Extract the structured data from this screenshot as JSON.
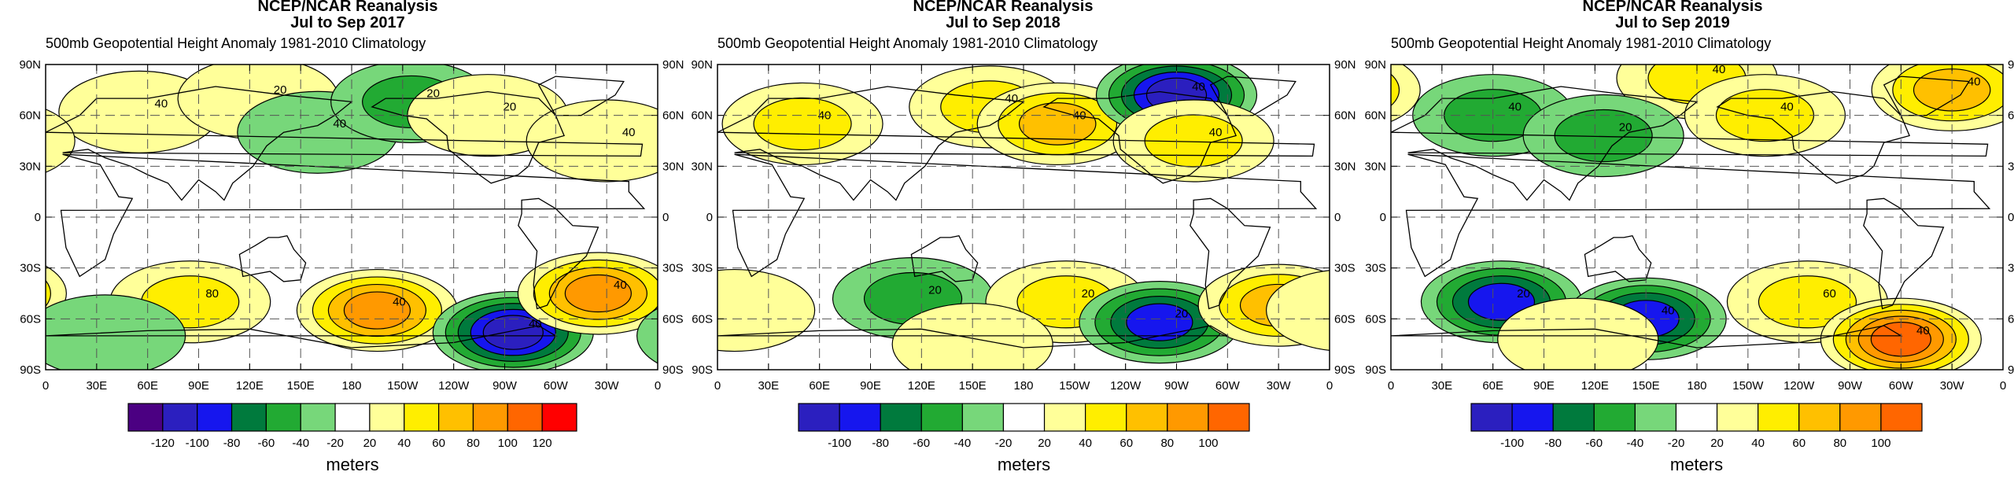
{
  "figure": {
    "panels": [
      {
        "title1": "NCEP/NCAR Reanalysis",
        "title2": "Jul to Sep 2017",
        "subtitle": "500mb Geopotential Height Anomaly  1981-2010 Climatology",
        "colorbar_labels": [
          "-120",
          "-100",
          "-80",
          "-60",
          "-40",
          "-20",
          "20",
          "40",
          "60",
          "80",
          "100",
          "120"
        ],
        "units": "meters",
        "contour_labels": [
          "40",
          "20",
          "40",
          "20",
          "20",
          "40",
          "80",
          "40",
          "40",
          "40"
        ]
      },
      {
        "title1": "NCEP/NCAR Reanalysis",
        "title2": "Jul to Sep 2018",
        "subtitle": "500mb Geopotential Height Anomaly  1981-2010 Climatology",
        "colorbar_labels": [
          "-100",
          "-80",
          "-60",
          "-40",
          "-20",
          "20",
          "40",
          "60",
          "80",
          "100"
        ],
        "units": "meters",
        "contour_labels": [
          "40",
          "40",
          "40",
          "40",
          "40",
          "20",
          "20",
          "20"
        ]
      },
      {
        "title1": "NCEP/NCAR Reanalysis",
        "title2": "Jul to Sep 2019",
        "subtitle": "500mb Geopotential Height Anomaly  1981-2010 Climatology",
        "colorbar_labels": [
          "-100",
          "-80",
          "-60",
          "-40",
          "-20",
          "20",
          "40",
          "60",
          "80",
          "100"
        ],
        "units": "meters",
        "contour_labels": [
          "40",
          "40",
          "40",
          "20",
          "40",
          "20",
          "40",
          "60",
          "40"
        ]
      }
    ],
    "lat_labels": [
      "90N",
      "60N",
      "30N",
      "0",
      "30S",
      "60S",
      "90S"
    ],
    "lon_labels": [
      "0",
      "30E",
      "60E",
      "90E",
      "120E",
      "150E",
      "180",
      "150W",
      "120W",
      "90W",
      "60W",
      "30W",
      "0"
    ],
    "colors": {
      "c_n120": "#4b0082",
      "c_n100": "#2b1fbf",
      "c_n80": "#1616ee",
      "c_n60": "#007a3d",
      "c_n40": "#22aa33",
      "c_n20": "#77d77a",
      "c_0": "#ffffff",
      "c_20": "#ffff99",
      "c_40": "#ffee00",
      "c_60": "#ffc000",
      "c_80": "#ff9900",
      "c_100": "#ff6600",
      "c_120": "#ff0000"
    }
  },
  "chart_data": [
    {
      "type": "heatmap",
      "title": "NCEP/NCAR Reanalysis Jul to Sep 2017",
      "subtitle": "500mb Geopotential Height Anomaly 1981-2010 Climatology",
      "x_axis": [
        "0",
        "30E",
        "60E",
        "90E",
        "120E",
        "150E",
        "180",
        "150W",
        "120W",
        "90W",
        "60W",
        "30W",
        "0"
      ],
      "y_axis": [
        "90N",
        "60N",
        "30N",
        "0",
        "30S",
        "60S",
        "90S"
      ],
      "colorbar": {
        "levels": [
          -120,
          -100,
          -80,
          -60,
          -40,
          -20,
          20,
          40,
          60,
          80,
          100,
          120
        ],
        "units": "meters"
      },
      "anomalies": [
        {
          "lon": 55,
          "lat": 62,
          "value": 35
        },
        {
          "lon": 125,
          "lat": 70,
          "value": 25
        },
        {
          "lon": 160,
          "lat": 50,
          "value": -35
        },
        {
          "lon": 215,
          "lat": 68,
          "value": -40
        },
        {
          "lon": 260,
          "lat": 60,
          "value": 30
        },
        {
          "lon": 330,
          "lat": 45,
          "value": 30
        },
        {
          "lon": 85,
          "lat": -50,
          "value": 55
        },
        {
          "lon": 195,
          "lat": -55,
          "value": 85
        },
        {
          "lon": 275,
          "lat": -68,
          "value": -110
        },
        {
          "lon": 325,
          "lat": -45,
          "value": 80
        },
        {
          "lon": 35,
          "lat": -70,
          "value": -30
        }
      ]
    },
    {
      "type": "heatmap",
      "title": "NCEP/NCAR Reanalysis Jul to Sep 2018",
      "subtitle": "500mb Geopotential Height Anomaly 1981-2010 Climatology",
      "x_axis": [
        "0",
        "30E",
        "60E",
        "90E",
        "120E",
        "150E",
        "180",
        "150W",
        "120W",
        "90W",
        "60W",
        "30W",
        "0"
      ],
      "y_axis": [
        "90N",
        "60N",
        "30N",
        "0",
        "30S",
        "60S",
        "90S"
      ],
      "colorbar": {
        "levels": [
          -100,
          -80,
          -60,
          -40,
          -20,
          20,
          40,
          60,
          80,
          100
        ],
        "units": "meters"
      },
      "anomalies": [
        {
          "lon": 50,
          "lat": 55,
          "value": 40
        },
        {
          "lon": 160,
          "lat": 65,
          "value": 45
        },
        {
          "lon": 200,
          "lat": 55,
          "value": 70
        },
        {
          "lon": 270,
          "lat": 72,
          "value": -100
        },
        {
          "lon": 280,
          "lat": 45,
          "value": 50
        },
        {
          "lon": 115,
          "lat": -48,
          "value": -50
        },
        {
          "lon": 205,
          "lat": -50,
          "value": 50
        },
        {
          "lon": 260,
          "lat": -62,
          "value": -95
        },
        {
          "lon": 330,
          "lat": -52,
          "value": 70
        },
        {
          "lon": 150,
          "lat": -75,
          "value": 30
        },
        {
          "lon": 10,
          "lat": -55,
          "value": 30
        }
      ]
    },
    {
      "type": "heatmap",
      "title": "NCEP/NCAR Reanalysis Jul to Sep 2019",
      "subtitle": "500mb Geopotential Height Anomaly 1981-2010 Climatology",
      "x_axis": [
        "0",
        "30E",
        "60E",
        "90E",
        "120E",
        "150E",
        "180",
        "150W",
        "120W",
        "90W",
        "60W",
        "30W",
        "0"
      ],
      "y_axis": [
        "90N",
        "60N",
        "30N",
        "0",
        "30S",
        "60S",
        "90S"
      ],
      "colorbar": {
        "levels": [
          -100,
          -80,
          -60,
          -40,
          -20,
          20,
          40,
          60,
          80,
          100
        ],
        "units": "meters"
      },
      "anomalies": [
        {
          "lon": 180,
          "lat": 82,
          "value": 40
        },
        {
          "lon": 330,
          "lat": 75,
          "value": 70
        },
        {
          "lon": 60,
          "lat": 60,
          "value": -40
        },
        {
          "lon": 125,
          "lat": 48,
          "value": -40
        },
        {
          "lon": 220,
          "lat": 60,
          "value": 45
        },
        {
          "lon": 65,
          "lat": -50,
          "value": -95
        },
        {
          "lon": 150,
          "lat": -60,
          "value": -85
        },
        {
          "lon": 245,
          "lat": -50,
          "value": 40
        },
        {
          "lon": 300,
          "lat": -72,
          "value": 105
        },
        {
          "lon": 110,
          "lat": -72,
          "value": 30
        }
      ]
    }
  ]
}
